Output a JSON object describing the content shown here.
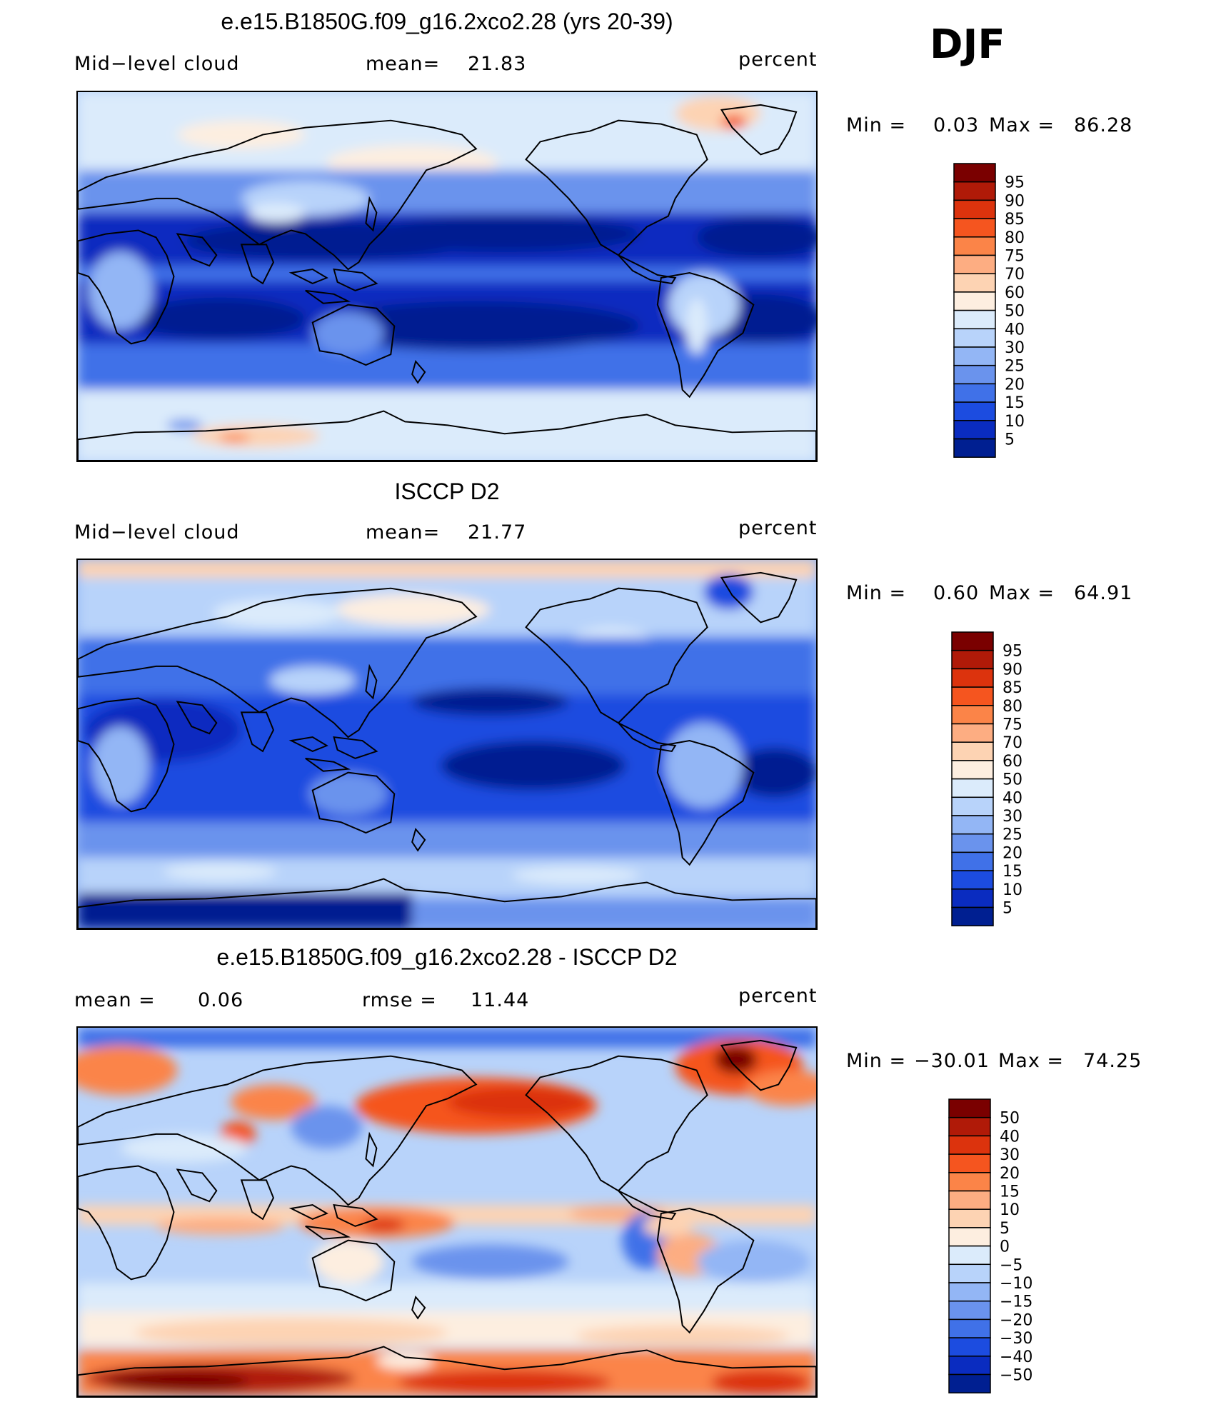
{
  "season": "DJF",
  "panels": [
    {
      "title": "e.e15.B1850G.f09_g16.2xco2.28 (yrs 20-39)",
      "left_label": "Mid−level cloud",
      "mid_label": "mean=",
      "mid_value": "21.83",
      "units": "percent",
      "min_label": "Min  =",
      "min_value": "0.03",
      "max_label": "Max  =",
      "max_value": "86.28",
      "palette": "abs"
    },
    {
      "title": "ISCCP D2",
      "left_label": "Mid−level cloud",
      "mid_label": "mean=",
      "mid_value": "21.77",
      "units": "percent",
      "min_label": "Min  =",
      "min_value": "0.60",
      "max_label": "Max  =",
      "max_value": "64.91",
      "palette": "abs"
    },
    {
      "title": "e.e15.B1850G.f09_g16.2xco2.28 - ISCCP D2",
      "left_label": "mean  =",
      "left_value": "0.06",
      "mid_label": "rmse  =",
      "mid_value": "11.44",
      "units": "percent",
      "min_label": "Min  =",
      "min_value": "−30.01",
      "max_label": "Max  =",
      "max_value": "74.25",
      "palette": "diff"
    }
  ],
  "colorbars": {
    "abs": {
      "levels": [
        "95",
        "90",
        "85",
        "80",
        "75",
        "70",
        "60",
        "50",
        "40",
        "30",
        "25",
        "20",
        "15",
        "10",
        "5"
      ],
      "colors": [
        "#7a0000",
        "#b01a08",
        "#dc330d",
        "#f5551f",
        "#fb8448",
        "#fdad82",
        "#fdd3b3",
        "#fdeee0",
        "#dbebfb",
        "#b8d3fa",
        "#93b6f5",
        "#6a93ed",
        "#4071e8",
        "#1c4ce0",
        "#0a2cc0",
        "#001f91"
      ]
    },
    "diff": {
      "levels": [
        "50",
        "40",
        "30",
        "20",
        "15",
        "10",
        "5",
        "0",
        "−5",
        "−10",
        "−15",
        "−20",
        "−30",
        "−40",
        "−50"
      ],
      "colors": [
        "#7a0000",
        "#b01a08",
        "#dc330d",
        "#f5551f",
        "#fb8448",
        "#fdad82",
        "#fdd3b3",
        "#fdeee0",
        "#dbebfb",
        "#b8d3fa",
        "#93b6f5",
        "#6a93ed",
        "#4071e8",
        "#1c4ce0",
        "#0a2cc0",
        "#001f91"
      ]
    }
  },
  "chart_data": [
    {
      "type": "heatmap",
      "title": "e.e15.B1850G.f09_g16.2xco2.28 (yrs 20-39)",
      "variable": "Mid-level cloud",
      "units": "percent",
      "mean": 21.83,
      "min": 0.03,
      "max": 86.28,
      "contour_levels": [
        5,
        10,
        15,
        20,
        25,
        30,
        40,
        50,
        60,
        70,
        75,
        80,
        85,
        90,
        95
      ]
    },
    {
      "type": "heatmap",
      "title": "ISCCP D2",
      "variable": "Mid-level cloud",
      "units": "percent",
      "mean": 21.77,
      "min": 0.6,
      "max": 64.91,
      "contour_levels": [
        5,
        10,
        15,
        20,
        25,
        30,
        40,
        50,
        60,
        70,
        75,
        80,
        85,
        90,
        95
      ]
    },
    {
      "type": "heatmap",
      "title": "e.e15.B1850G.f09_g16.2xco2.28 - ISCCP D2",
      "units": "percent",
      "mean": 0.06,
      "rmse": 11.44,
      "min": -30.01,
      "max": 74.25,
      "contour_levels": [
        -50,
        -40,
        -30,
        -20,
        -15,
        -10,
        -5,
        0,
        5,
        10,
        15,
        20,
        30,
        40,
        50
      ]
    }
  ]
}
